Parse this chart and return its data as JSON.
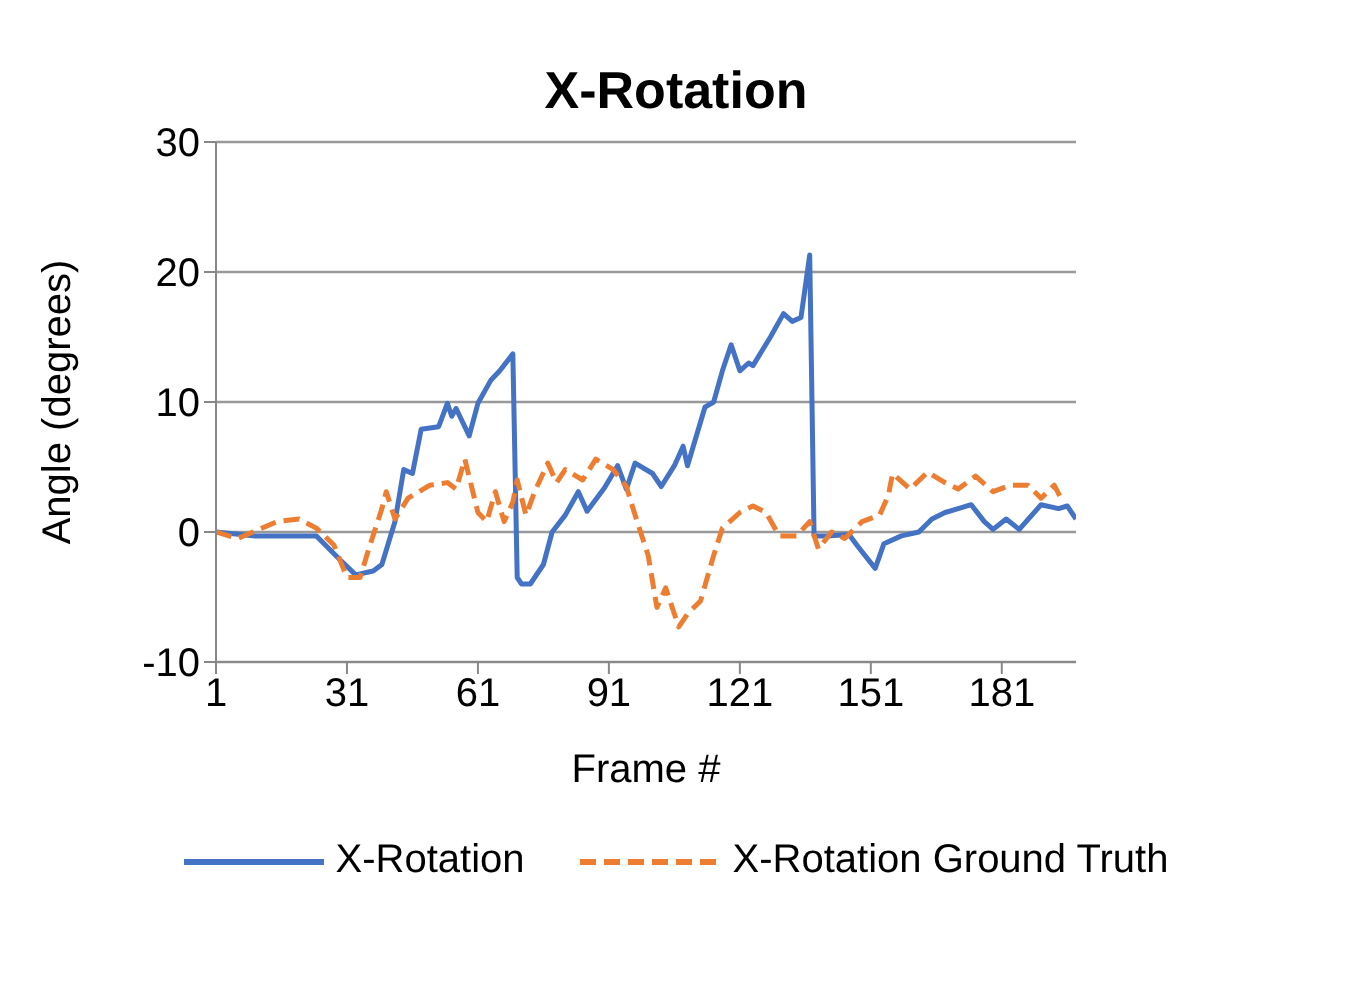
{
  "chart_data": {
    "type": "line",
    "title": "X-Rotation",
    "xlabel": "Frame #",
    "ylabel": "Angle (degrees)",
    "xlim": [
      1,
      198
    ],
    "xticks": [
      1,
      31,
      61,
      91,
      121,
      151,
      181
    ],
    "ylim": [
      -10,
      30
    ],
    "yticks": [
      -10,
      0,
      10,
      20,
      30
    ],
    "grid": "y",
    "legend": "bottom",
    "marker": "none",
    "series": [
      {
        "name": "X-Rotation",
        "color": "#4472c4",
        "line_style": "solid",
        "x": [
          1,
          10,
          24,
          29,
          33,
          37,
          39,
          42,
          44,
          46,
          48,
          52,
          54,
          55,
          56,
          59,
          61,
          64,
          66,
          69,
          70,
          71,
          73,
          76,
          78,
          81,
          84,
          86,
          90,
          93,
          95,
          97,
          101,
          103,
          106,
          108,
          109,
          113,
          115,
          117,
          119,
          121,
          123,
          124,
          128,
          131,
          133,
          135,
          137,
          138,
          141,
          146,
          148,
          152,
          154,
          158,
          162,
          165,
          168,
          171,
          174,
          177,
          179,
          182,
          185,
          190,
          194,
          196,
          198
        ],
        "values": [
          0,
          -0.3,
          -0.3,
          -2,
          -3.3,
          -3,
          -2.5,
          0.8,
          4.8,
          4.5,
          7.9,
          8.1,
          9.9,
          8.9,
          9.5,
          7.4,
          9.9,
          11.7,
          12.4,
          13.7,
          -3.5,
          -4,
          -4,
          -2.5,
          0,
          1.3,
          3.1,
          1.6,
          3.4,
          5.1,
          3.3,
          5.3,
          4.5,
          3.5,
          5.1,
          6.6,
          5.1,
          9.6,
          10,
          12.4,
          14.4,
          12.4,
          13,
          12.8,
          15,
          16.8,
          16.2,
          16.5,
          21.3,
          -0.3,
          -0.3,
          -0.2,
          -1.1,
          -2.8,
          -0.9,
          -0.3,
          0,
          1,
          1.5,
          1.8,
          2.1,
          0.8,
          0.2,
          1,
          0.2,
          2.1,
          1.8,
          2,
          1
        ]
      },
      {
        "name": "X-Rotation Ground Truth",
        "color": "#ed7d31",
        "line_style": "dashed",
        "x": [
          1,
          6,
          15,
          20,
          24,
          28,
          31,
          34,
          36,
          39,
          40,
          42,
          45,
          50,
          54,
          56,
          58,
          61,
          63,
          65,
          67,
          69,
          70,
          72,
          74,
          77,
          79,
          81,
          85,
          88,
          92,
          95,
          97,
          100,
          102,
          104,
          107,
          109,
          112,
          115,
          117,
          121,
          124,
          127,
          130,
          134,
          137,
          139,
          142,
          145,
          149,
          153,
          155,
          156,
          160,
          164,
          168,
          171,
          175,
          179,
          183,
          187,
          190,
          193,
          195
        ],
        "values": [
          0,
          -0.5,
          0.8,
          1,
          0.3,
          -1,
          -3.5,
          -3.5,
          -1.3,
          1.8,
          3.1,
          1,
          2.6,
          3.6,
          3.8,
          3.3,
          5.6,
          1.5,
          0.8,
          3.1,
          0.8,
          2.3,
          4,
          1.3,
          3.1,
          5.3,
          3.8,
          4.8,
          4,
          5.6,
          4.8,
          3.5,
          1.3,
          -1.8,
          -5.8,
          -4.3,
          -7.3,
          -6.3,
          -5.3,
          -1.8,
          0.3,
          1.5,
          2,
          1.5,
          -0.3,
          -0.3,
          0.8,
          -1.3,
          0,
          -0.5,
          0.8,
          1.3,
          2.8,
          4.5,
          3.3,
          4.6,
          3.8,
          3.3,
          4.3,
          3.1,
          3.6,
          3.6,
          2.6,
          3.6,
          2.3
        ]
      }
    ]
  }
}
